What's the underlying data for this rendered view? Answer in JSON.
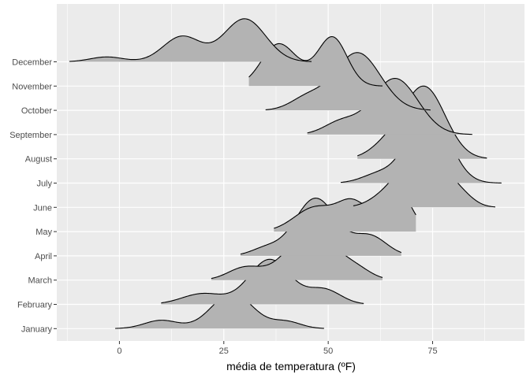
{
  "chart_data": {
    "type": "ridgeline",
    "title": "",
    "xlabel": "média de temperatura (ºF)",
    "ylabel": "",
    "xlim": [
      -15,
      97
    ],
    "x_ticks": [
      0,
      25,
      50,
      75
    ],
    "x_tick_labels": [
      "0",
      "25",
      "50",
      "75"
    ],
    "grid": true,
    "legend": "none",
    "colors": {
      "panel_background": "#ebebeb",
      "grid_major": "#ffffff",
      "fill": "#b3b3b3",
      "outline": "#000000"
    },
    "series": [
      {
        "name": "January",
        "range": [
          -1,
          49
        ],
        "peaks": [
          {
            "center": 10,
            "sd": 4.0,
            "height": 0.17
          },
          {
            "center": 27,
            "sd": 5.0,
            "height": 0.72
          },
          {
            "center": 40,
            "sd": 3.5,
            "height": 0.14
          }
        ]
      },
      {
        "name": "February",
        "range": [
          10,
          58.5
        ],
        "peaks": [
          {
            "center": 20,
            "sd": 5.0,
            "height": 0.22
          },
          {
            "center": 36,
            "sd": 5.0,
            "height": 0.92
          },
          {
            "center": 49,
            "sd": 4.0,
            "height": 0.3
          }
        ]
      },
      {
        "name": "March",
        "range": [
          22,
          63
        ],
        "peaks": [
          {
            "center": 30,
            "sd": 4.0,
            "height": 0.25
          },
          {
            "center": 46,
            "sd": 6.0,
            "height": 1.0
          },
          {
            "center": 57,
            "sd": 3.5,
            "height": 0.15
          }
        ]
      },
      {
        "name": "April",
        "range": [
          29,
          67.5
        ],
        "peaks": [
          {
            "center": 35,
            "sd": 3.5,
            "height": 0.15
          },
          {
            "center": 47,
            "sd": 5.0,
            "height": 1.18
          },
          {
            "center": 60,
            "sd": 4.0,
            "height": 0.4
          }
        ]
      },
      {
        "name": "May",
        "range": [
          37,
          71
        ],
        "peaks": [
          {
            "center": 47,
            "sd": 5.0,
            "height": 0.5
          },
          {
            "center": 56,
            "sd": 3.5,
            "height": 0.55
          },
          {
            "center": 66,
            "sd": 3.5,
            "height": 0.95
          }
        ]
      },
      {
        "name": "June",
        "range": [
          56,
          90
        ],
        "peaks": [
          {
            "center": 64,
            "sd": 4.0,
            "height": 0.2
          },
          {
            "center": 73,
            "sd": 5.0,
            "height": 1.3
          },
          {
            "center": 82,
            "sd": 3.0,
            "height": 0.15
          }
        ]
      },
      {
        "name": "July",
        "range": [
          53,
          91.5
        ],
        "peaks": [
          {
            "center": 62,
            "sd": 4.0,
            "height": 0.18
          },
          {
            "center": 74,
            "sd": 4.8,
            "height": 1.55
          }
        ]
      },
      {
        "name": "August",
        "range": [
          57,
          88
        ],
        "peaks": [
          {
            "center": 64,
            "sd": 4.0,
            "height": 0.25
          },
          {
            "center": 73,
            "sd": 5.0,
            "height": 1.47
          }
        ]
      },
      {
        "name": "September",
        "range": [
          45,
          84.5
        ],
        "peaks": [
          {
            "center": 53,
            "sd": 4.0,
            "height": 0.25
          },
          {
            "center": 66,
            "sd": 5.5,
            "height": 1.15
          }
        ]
      },
      {
        "name": "October",
        "range": [
          35,
          74.5
        ],
        "peaks": [
          {
            "center": 45,
            "sd": 4.0,
            "height": 0.25
          },
          {
            "center": 57,
            "sd": 5.5,
            "height": 1.18
          }
        ]
      },
      {
        "name": "November",
        "range": [
          31,
          63
        ],
        "peaks": [
          {
            "center": 38,
            "sd": 4.0,
            "height": 0.85
          },
          {
            "center": 51,
            "sd": 3.5,
            "height": 1.0
          },
          {
            "center": 44,
            "sd": 3.0,
            "height": 0.12
          }
        ]
      },
      {
        "name": "December",
        "range": [
          -12,
          46
        ],
        "peaks": [
          {
            "center": -3,
            "sd": 4.0,
            "height": 0.1
          },
          {
            "center": 15,
            "sd": 4.5,
            "height": 0.52
          },
          {
            "center": 30,
            "sd": 5.0,
            "height": 0.88
          }
        ]
      }
    ]
  }
}
